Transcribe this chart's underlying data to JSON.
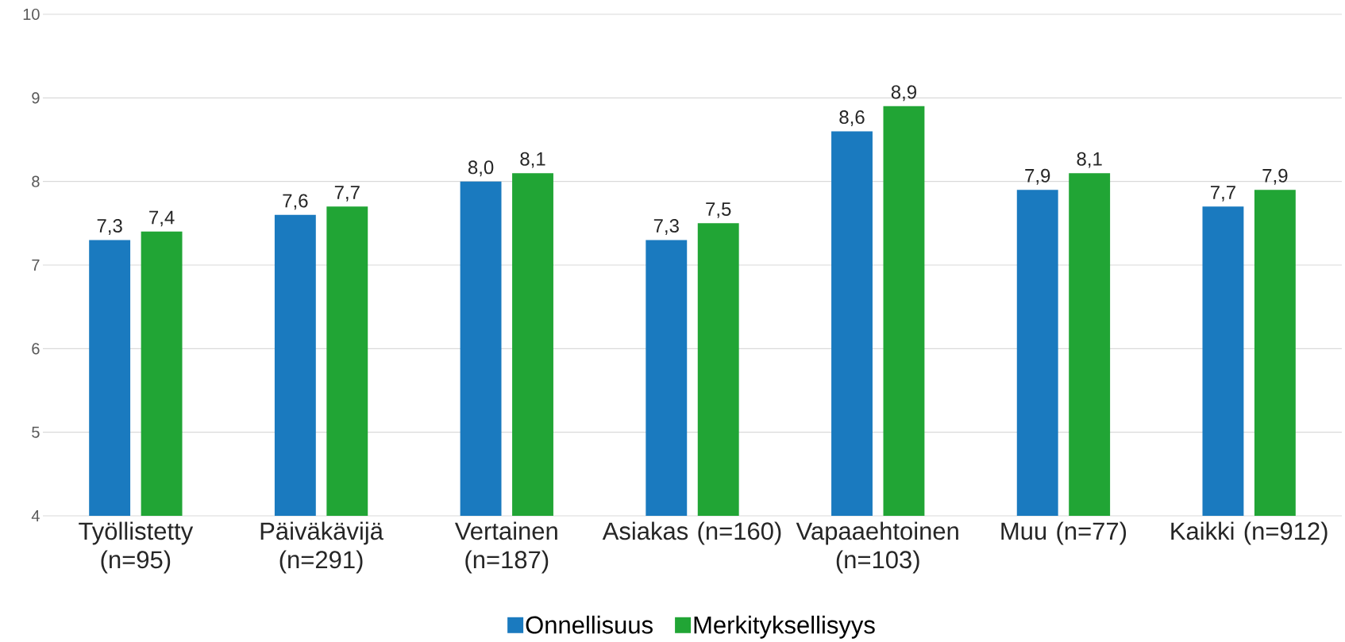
{
  "chart_data": {
    "type": "bar",
    "categories": [
      "Työllistetty (n=95)",
      "Päiväkävijä (n=291)",
      "Vertainen (n=187)",
      "Asiakas (n=160)",
      "Vapaaehtoinen (n=103)",
      "Muu (n=77)",
      "Kaikki (n=912)"
    ],
    "series": [
      {
        "name": "Onnellisuus",
        "color": "#1a7abf",
        "values": [
          7.3,
          7.6,
          8.0,
          7.3,
          8.6,
          7.9,
          7.7
        ],
        "value_labels": [
          "7,3",
          "7,6",
          "8,0",
          "7,3",
          "8,6",
          "7,9",
          "7,7"
        ]
      },
      {
        "name": "Merkityksellisyys",
        "color": "#21a535",
        "values": [
          7.4,
          7.7,
          8.1,
          7.5,
          8.9,
          8.1,
          7.9
        ],
        "value_labels": [
          "7,4",
          "7,7",
          "8,1",
          "7,5",
          "8,9",
          "8,1",
          "7,9"
        ]
      }
    ],
    "ylim": [
      4,
      10
    ],
    "yticks": [
      4,
      5,
      6,
      7,
      8,
      9,
      10
    ],
    "grid": "y",
    "legend": "bottom"
  }
}
